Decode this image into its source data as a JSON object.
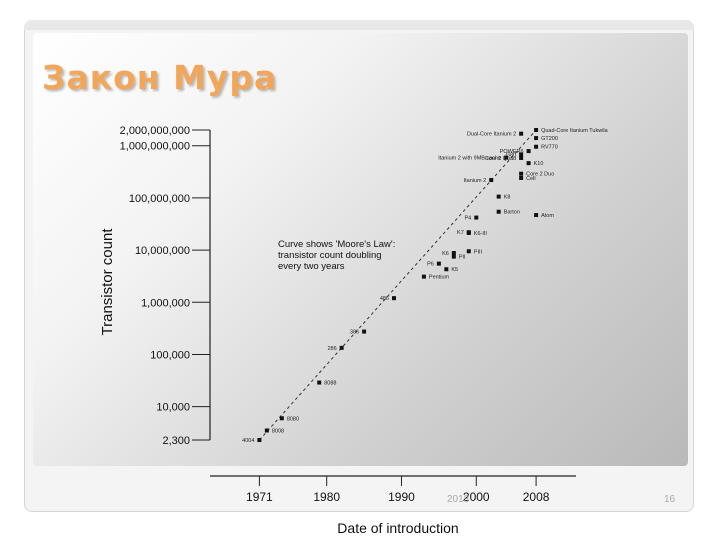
{
  "slide": {
    "title": "Закон Мура",
    "footer_date": "2013",
    "page_number": "16"
  },
  "chart_data": {
    "type": "scatter",
    "scale": "log-y",
    "xlabel": "Date of introduction",
    "ylabel": "Transistor count",
    "xlim": [
      1966,
      2012
    ],
    "ylim": [
      2300,
      2000000000
    ],
    "x_ticks": [
      {
        "value": 1971,
        "label": "1971"
      },
      {
        "value": 1980,
        "label": "1980"
      },
      {
        "value": 1990,
        "label": "1990"
      },
      {
        "value": 2000,
        "label": "2000"
      },
      {
        "value": 2008,
        "label": "2008"
      }
    ],
    "y_ticks": [
      {
        "value": 2000000000,
        "label": "2,000,000,000"
      },
      {
        "value": 1000000000,
        "label": "1,000,000,000"
      },
      {
        "value": 100000000,
        "label": "100,000,000"
      },
      {
        "value": 10000000,
        "label": "10,000,000"
      },
      {
        "value": 1000000,
        "label": "1,000,000"
      },
      {
        "value": 100000,
        "label": "100,000"
      },
      {
        "value": 10000,
        "label": "10,000"
      },
      {
        "value": 2300,
        "label": "2,300"
      }
    ],
    "annotation": [
      "Curve shows 'Moore's Law':",
      "transistor count doubling",
      "every two years"
    ],
    "trend_line": {
      "from": [
        1971,
        2300
      ],
      "to": [
        2008,
        2000000000
      ]
    },
    "points": [
      {
        "label": "4004",
        "x": 1971,
        "y": 2300,
        "label_side": "left"
      },
      {
        "label": "8008",
        "x": 1972,
        "y": 3500,
        "label_side": "right"
      },
      {
        "label": "8080",
        "x": 1974,
        "y": 6000,
        "label_side": "right"
      },
      {
        "label": "8088",
        "x": 1979,
        "y": 29000,
        "label_side": "right"
      },
      {
        "label": "286",
        "x": 1982,
        "y": 134000,
        "label_side": "left"
      },
      {
        "label": "386",
        "x": 1985,
        "y": 275000,
        "label_side": "left"
      },
      {
        "label": "486",
        "x": 1989,
        "y": 1200000,
        "label_side": "left"
      },
      {
        "label": "Pentium",
        "x": 1993,
        "y": 3100000,
        "label_side": "right"
      },
      {
        "label": "K5",
        "x": 1996,
        "y": 4300000,
        "label_side": "right"
      },
      {
        "label": "P6",
        "x": 1995,
        "y": 5500000,
        "label_side": "left"
      },
      {
        "label": "PII",
        "x": 1997,
        "y": 7500000,
        "label_side": "right"
      },
      {
        "label": "K6",
        "x": 1997,
        "y": 8800000,
        "label_side": "left"
      },
      {
        "label": "PIII",
        "x": 1999,
        "y": 9500000,
        "label_side": "right"
      },
      {
        "label": "K7",
        "x": 1999,
        "y": 22000000,
        "label_side": "left"
      },
      {
        "label": "K6-III",
        "x": 1999,
        "y": 21300000,
        "label_side": "right"
      },
      {
        "label": "P4",
        "x": 2000,
        "y": 42000000,
        "label_side": "left"
      },
      {
        "label": "Barton",
        "x": 2003,
        "y": 54300000,
        "label_side": "right"
      },
      {
        "label": "Atom",
        "x": 2008,
        "y": 47000000,
        "label_side": "right"
      },
      {
        "label": "K8",
        "x": 2003,
        "y": 105900000,
        "label_side": "right"
      },
      {
        "label": "Itanium 2",
        "x": 2002,
        "y": 220000000,
        "label_side": "left"
      },
      {
        "label": "Core 2 Duo",
        "x": 2006,
        "y": 291000000,
        "label_side": "right"
      },
      {
        "label": "Cell",
        "x": 2006,
        "y": 241000000,
        "label_side": "right"
      },
      {
        "label": "Core 2 Quad",
        "x": 2006,
        "y": 582000000,
        "label_side": "left"
      },
      {
        "label": "K10",
        "x": 2007,
        "y": 463000000,
        "label_side": "right"
      },
      {
        "label": "Itanium 2 with 9MB cache",
        "x": 2004,
        "y": 592000000,
        "label_side": "left"
      },
      {
        "label": "G80",
        "x": 2006,
        "y": 681000000,
        "label_side": "left"
      },
      {
        "label": "POWER6",
        "x": 2007,
        "y": 789000000,
        "label_side": "left"
      },
      {
        "label": "RV770",
        "x": 2008,
        "y": 956000000,
        "label_side": "right"
      },
      {
        "label": "Dual-Core Itanium 2",
        "x": 2006,
        "y": 1700000000,
        "label_side": "left"
      },
      {
        "label": "GT200",
        "x": 2008,
        "y": 1400000000,
        "label_side": "right"
      },
      {
        "label": "Quad-Core Itanium Tukwila",
        "x": 2008,
        "y": 2000000000,
        "label_side": "right"
      }
    ]
  }
}
